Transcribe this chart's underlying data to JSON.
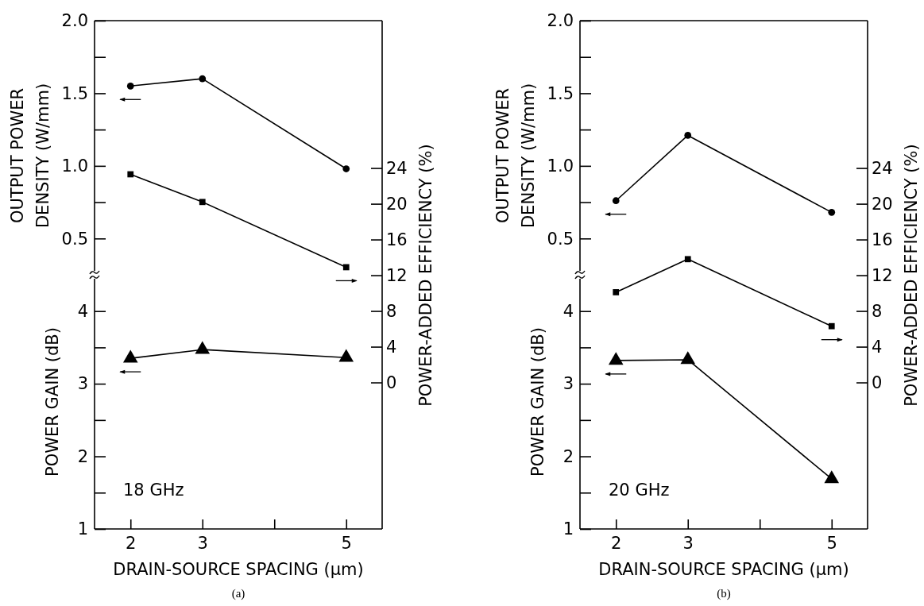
{
  "chart_data": [
    {
      "type": "line",
      "x": [
        2,
        3,
        5
      ],
      "xlim": [
        1.5,
        5.5
      ],
      "xticks": [
        2,
        3,
        {
          "value": 4,
          "label": null
        },
        5
      ],
      "xlabel": "DRAIN-SOURCE SPACING (μm)",
      "ylabel": "POWER GAIN (dB)",
      "ylim": [
        1,
        8
      ],
      "yticks": [
        1,
        {
          "value": 1.5,
          "label": null
        },
        2,
        {
          "value": 2.5,
          "label": null
        },
        3,
        {
          "value": 3.5,
          "label": null
        },
        4
      ],
      "y3label": "OUTPUT POWER\nDENSITY (W/mm)",
      "y3lim": [
        -1.5,
        2.0
      ],
      "y3ticks": [
        {
          "value": 0.5,
          "label": "0.5"
        },
        {
          "value": 0.75,
          "label": null
        },
        {
          "value": 1,
          "label": "1.0"
        },
        {
          "value": 1.25,
          "label": null
        },
        1.5,
        {
          "value": 1.75,
          "label": null
        },
        {
          "value": 2,
          "label": "2.0"
        }
      ],
      "y2label": "POWER-ADDED EFFICIENCY (%)",
      "y2lim": [
        -16.4,
        40.5
      ],
      "y2ticks": [
        0,
        4,
        8,
        12,
        16,
        20,
        24
      ],
      "series": [
        {
          "color": "#000000",
          "marker": "circle",
          "axis": "y3",
          "values": [
            1.55,
            1.6,
            0.98
          ]
        },
        {
          "color": "#000000",
          "marker": "square",
          "axis": "y2",
          "values": [
            23.3,
            20.2,
            12.9
          ]
        },
        {
          "color": "#000000",
          "marker": "triangle",
          "values": [
            3.35,
            3.47,
            3.36
          ]
        }
      ],
      "annotations": [
        "18 GHz",
        "(a)"
      ]
    },
    {
      "type": "line",
      "x": [
        2,
        3,
        5
      ],
      "xlim": [
        1.5,
        5.5
      ],
      "xticks": [
        2,
        3,
        {
          "value": 4,
          "label": null
        },
        5
      ],
      "xlabel": "DRAIN-SOURCE SPACING (μm)",
      "ylabel": "POWER GAIN (dB)",
      "ylim": [
        1,
        8
      ],
      "yticks": [
        1,
        {
          "value": 1.5,
          "label": null
        },
        2,
        {
          "value": 2.5,
          "label": null
        },
        3,
        {
          "value": 3.5,
          "label": null
        },
        4
      ],
      "y3label": "OUTPUT POWER\nDENSITY (W/mm)",
      "y3lim": [
        -1.5,
        2.0
      ],
      "y3ticks": [
        {
          "value": 0.5,
          "label": "0.5"
        },
        {
          "value": 0.75,
          "label": null
        },
        {
          "value": 1,
          "label": "1.0"
        },
        {
          "value": 1.25,
          "label": null
        },
        1.5,
        {
          "value": 1.75,
          "label": null
        },
        {
          "value": 2,
          "label": "2.0"
        }
      ],
      "y2label": "POWER-ADDED EFFICIENCY (%)",
      "y2lim": [
        -16.4,
        40.5
      ],
      "y2ticks": [
        0,
        4,
        8,
        12,
        16,
        20,
        24
      ],
      "series": [
        {
          "color": "#000000",
          "marker": "circle",
          "axis": "y3",
          "values": [
            0.76,
            1.21,
            0.68
          ]
        },
        {
          "color": "#000000",
          "marker": "square",
          "axis": "y2",
          "values": [
            10.1,
            13.8,
            6.3
          ]
        },
        {
          "color": "#000000",
          "marker": "triangle",
          "values": [
            3.32,
            3.33,
            1.69
          ]
        }
      ],
      "annotations": [
        "20 GHz",
        "(b)"
      ]
    }
  ]
}
